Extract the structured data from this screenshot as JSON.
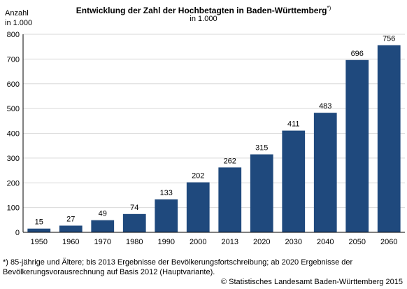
{
  "title": "Entwicklung der Zahl der Hochbetagten in Baden-Württemberg",
  "title_marker": "*)",
  "subtitle": "in 1.000",
  "y_unit_line1": "Anzahl",
  "y_unit_line2": "in 1.000",
  "footnote_line1": "*) 85-jährige und Ältere; bis 2013 Ergebnisse der Bevölkerungsfortschreibung; ab 2020 Ergebnisse der",
  "footnote_line2": "Bevölkerungsvorausrechnung auf Basis 2012 (Hauptvariante).",
  "source": "© Statistisches Landesamt Baden-Württemberg 2015",
  "colors": {
    "bar": "#1f497d",
    "grid": "#d9d9d9",
    "axis": "#000000"
  },
  "chart_data": {
    "type": "bar",
    "categories": [
      "1950",
      "1960",
      "1970",
      "1980",
      "1990",
      "2000",
      "2013",
      "2020",
      "2030",
      "2040",
      "2050",
      "2060"
    ],
    "values": [
      15,
      27,
      49,
      74,
      133,
      202,
      262,
      315,
      411,
      483,
      696,
      756
    ],
    "yticks": [
      0,
      100,
      200,
      300,
      400,
      500,
      600,
      700,
      800
    ],
    "ylim": [
      0,
      800
    ],
    "grid": true,
    "data_labels": true
  }
}
